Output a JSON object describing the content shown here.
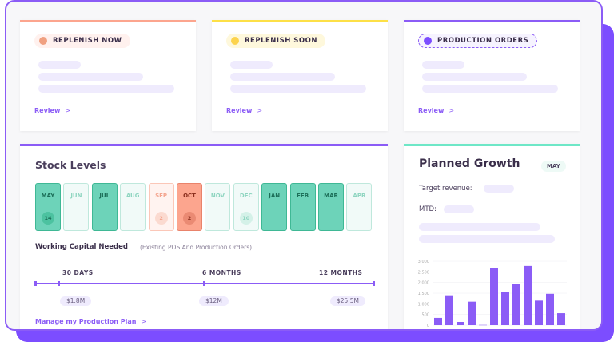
{
  "status_cards": [
    {
      "label": "REPLENISH NOW",
      "accent": "#fca58e",
      "dot": "#f0a080",
      "pill_bg": "#fff1ee",
      "link": "Review"
    },
    {
      "label": "REPLENISH SOON",
      "accent": "#fde047",
      "dot": "#fcd34d",
      "pill_bg": "#fef8dc",
      "link": "Review"
    },
    {
      "label": "PRODUCTION ORDERS",
      "accent": "#8b5cf6",
      "dot": "#7c4dff",
      "pill_bg": "#f6f3ff",
      "link": "Review"
    }
  ],
  "stock": {
    "title": "Stock Levels",
    "months": [
      {
        "label": "MAY",
        "state": "high",
        "count": "14"
      },
      {
        "label": "JUN",
        "state": "light",
        "count": ""
      },
      {
        "label": "JUL",
        "state": "high",
        "count": ""
      },
      {
        "label": "AUG",
        "state": "light",
        "count": ""
      },
      {
        "label": "SEP",
        "state": "warn-light",
        "count": "2"
      },
      {
        "label": "OCT",
        "state": "warn",
        "count": "2"
      },
      {
        "label": "NOV",
        "state": "light",
        "count": ""
      },
      {
        "label": "DEC",
        "state": "light",
        "count": "10"
      },
      {
        "label": "JAN",
        "state": "high",
        "count": ""
      },
      {
        "label": "FEB",
        "state": "high",
        "count": ""
      },
      {
        "label": "MAR",
        "state": "high",
        "count": ""
      },
      {
        "label": "APR",
        "state": "light",
        "count": ""
      }
    ],
    "capital_title": "Working Capital Needed",
    "capital_sub": "(Existing POS And Production Orders)",
    "timeline": [
      {
        "label": "30 DAYS",
        "value": "$1.8M"
      },
      {
        "label": "6 MONTHS",
        "value": "$12M"
      },
      {
        "label": "12 MONTHS",
        "value": "$25.5M"
      }
    ],
    "link": "Manage my Production Plan"
  },
  "growth": {
    "title": "Planned Growth",
    "month": "MAY",
    "target_label": "Target revenue:",
    "mtd_label": "MTD:"
  },
  "chart_data": {
    "type": "bar",
    "values": [
      340,
      1400,
      150,
      1100,
      10,
      2700,
      1550,
      1950,
      2780,
      1150,
      1470,
      560
    ],
    "ylim": [
      0,
      3000
    ],
    "yticks": [
      "0",
      "500",
      "1,000",
      "1,500",
      "2,000",
      "2,500",
      "3,000"
    ],
    "grid": true,
    "color": "#8b5cf6"
  }
}
